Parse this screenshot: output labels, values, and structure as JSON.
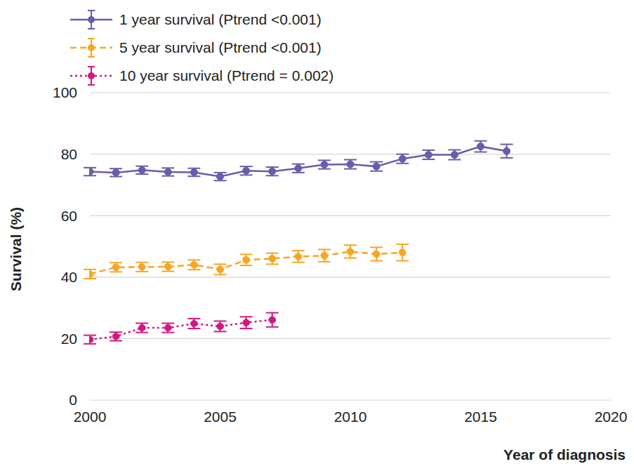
{
  "chart_data": {
    "type": "line",
    "x_label": "Year of diagnosis",
    "y_label": "Survival (%)",
    "x": [
      2000,
      2001,
      2002,
      2003,
      2004,
      2005,
      2006,
      2007,
      2008,
      2009,
      2010,
      2011,
      2012,
      2013,
      2014,
      2015,
      2016
    ],
    "xlim": [
      2000,
      2020
    ],
    "xticks": [
      2000,
      2005,
      2010,
      2015,
      2020
    ],
    "ylim": [
      0,
      100
    ],
    "yticks": [
      0,
      20,
      40,
      60,
      80,
      100
    ],
    "grid": true,
    "legend": "top left",
    "series": [
      {
        "name": "1 year survival (Ptrend <0.001)",
        "color": "#6b5ca8",
        "line_style": "solid",
        "marker": "circle",
        "values": [
          74.3,
          74.0,
          74.8,
          74.2,
          74.1,
          72.7,
          74.6,
          74.4,
          75.4,
          76.6,
          76.7,
          76.0,
          78.5,
          79.8,
          79.8,
          82.5,
          81.0
        ],
        "errors": [
          1.3,
          1.3,
          1.3,
          1.3,
          1.3,
          1.3,
          1.4,
          1.4,
          1.4,
          1.4,
          1.5,
          1.5,
          1.5,
          1.5,
          1.6,
          1.8,
          2.2
        ]
      },
      {
        "name": "5 year survival (Ptrend <0.001)",
        "color": "#f6a623",
        "line_style": "dashed",
        "marker": "circle",
        "values": [
          41.0,
          43.2,
          43.3,
          43.4,
          44.0,
          42.5,
          45.6,
          46.0,
          46.7,
          47.0,
          48.3,
          47.5,
          48.0,
          null,
          null,
          null,
          null
        ],
        "errors": [
          1.5,
          1.5,
          1.5,
          1.5,
          1.6,
          1.7,
          1.8,
          1.8,
          1.9,
          2.0,
          2.1,
          2.2,
          2.7,
          null,
          null,
          null,
          null
        ]
      },
      {
        "name": "10 year survival (Ptrend = 0.002)",
        "color": "#d4187f",
        "line_style": "dotted",
        "marker": "circle",
        "values": [
          19.7,
          20.7,
          23.5,
          23.5,
          24.9,
          24.0,
          25.2,
          26.1,
          null,
          null,
          null,
          null,
          null,
          null,
          null,
          null,
          null
        ],
        "errors": [
          1.4,
          1.4,
          1.5,
          1.5,
          1.6,
          1.7,
          1.9,
          2.3,
          null,
          null,
          null,
          null,
          null,
          null,
          null,
          null,
          null
        ]
      }
    ]
  }
}
